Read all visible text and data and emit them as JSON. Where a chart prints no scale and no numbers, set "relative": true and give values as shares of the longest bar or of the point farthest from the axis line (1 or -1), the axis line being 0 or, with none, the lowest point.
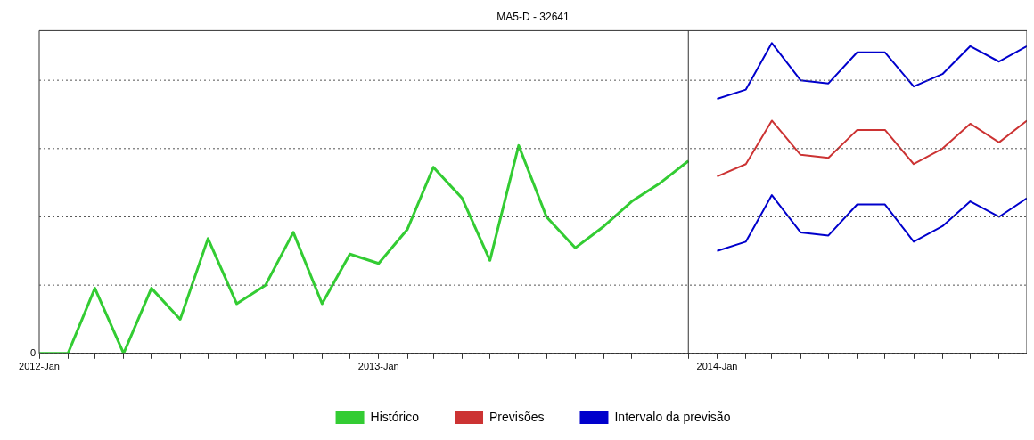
{
  "chart_data": {
    "type": "line",
    "title": "MA5-D - 32641",
    "relative": true,
    "legend": "bottom",
    "marker": "none",
    "line_style": "solid",
    "xlim": [
      "2012-01",
      "2014-12"
    ],
    "xticks": [
      {
        "value": "2012-01",
        "label": "2012-Jan"
      },
      {
        "value": "2012-02",
        "label": null
      },
      {
        "value": "2012-03",
        "label": null
      },
      {
        "value": "2012-04",
        "label": null
      },
      {
        "value": "2012-05",
        "label": null
      },
      {
        "value": "2012-06",
        "label": null
      },
      {
        "value": "2012-07",
        "label": null
      },
      {
        "value": "2012-08",
        "label": null
      },
      {
        "value": "2012-09",
        "label": null
      },
      {
        "value": "2012-10",
        "label": null
      },
      {
        "value": "2012-11",
        "label": null
      },
      {
        "value": "2012-12",
        "label": null
      },
      {
        "value": "2013-01",
        "label": "2013-Jan"
      },
      {
        "value": "2013-02",
        "label": null
      },
      {
        "value": "2013-03",
        "label": null
      },
      {
        "value": "2013-04",
        "label": null
      },
      {
        "value": "2013-05",
        "label": null
      },
      {
        "value": "2013-06",
        "label": null
      },
      {
        "value": "2013-07",
        "label": null
      },
      {
        "value": "2013-08",
        "label": null
      },
      {
        "value": "2013-09",
        "label": null
      },
      {
        "value": "2013-10",
        "label": null
      },
      {
        "value": "2013-11",
        "label": null
      },
      {
        "value": "2013-12",
        "label": null
      },
      {
        "value": "2014-01",
        "label": "2014-Jan"
      },
      {
        "value": "2014-02",
        "label": null
      },
      {
        "value": "2014-03",
        "label": null
      },
      {
        "value": "2014-04",
        "label": null
      },
      {
        "value": "2014-05",
        "label": null
      },
      {
        "value": "2014-06",
        "label": null
      },
      {
        "value": "2014-07",
        "label": null
      },
      {
        "value": "2014-08",
        "label": null
      },
      {
        "value": "2014-09",
        "label": null
      },
      {
        "value": "2014-10",
        "label": null
      },
      {
        "value": "2014-11",
        "label": null
      }
    ],
    "annotations": [
      "0"
    ],
    "ref_lines": [
      {
        "axis": "x",
        "value": "2013-12",
        "color": "#333333"
      },
      {
        "axis": "y",
        "value": 0,
        "color": "#555555",
        "line_style": "dotted"
      },
      {
        "axis": "y",
        "value": 0.22,
        "color": "#555555",
        "line_style": "dotted"
      },
      {
        "axis": "y",
        "value": 0.44,
        "color": "#555555",
        "line_style": "dotted"
      },
      {
        "axis": "y",
        "value": 0.66,
        "color": "#555555",
        "line_style": "dotted"
      },
      {
        "axis": "y",
        "value": 0.88,
        "color": "#555555",
        "line_style": "dotted"
      }
    ],
    "series": [
      {
        "name": "Histórico",
        "color": "#33cc33",
        "x": [
          "2012-01",
          "2012-02",
          "2012-03",
          "2012-04",
          "2012-05",
          "2012-06",
          "2012-07",
          "2012-08",
          "2012-09",
          "2012-10",
          "2012-11",
          "2012-12",
          "2013-01",
          "2013-02",
          "2013-03",
          "2013-04",
          "2013-05",
          "2013-06",
          "2013-07",
          "2013-08",
          "2013-09",
          "2013-10",
          "2013-11",
          "2013-12"
        ],
        "values": [
          0,
          0,
          0.21,
          0,
          0.21,
          0.11,
          0.37,
          0.16,
          0.22,
          0.39,
          0.16,
          0.32,
          0.29,
          0.4,
          0.6,
          0.5,
          0.3,
          0.67,
          0.44,
          0.34,
          0.41,
          0.49,
          0.55,
          0.62
        ]
      },
      {
        "name": "Previsões",
        "color": "#cc3333",
        "x": [
          "2014-01",
          "2014-02",
          "2014-03",
          "2014-04",
          "2014-05",
          "2014-06",
          "2014-07",
          "2014-08",
          "2014-09",
          "2014-10",
          "2014-11",
          "2014-12"
        ],
        "values": [
          0.57,
          0.61,
          0.75,
          0.64,
          0.63,
          0.72,
          0.72,
          0.61,
          0.66,
          0.74,
          0.68,
          0.75
        ]
      },
      {
        "name": "Intervalo da previsão",
        "color": "#0000cc",
        "x": [
          "2014-01",
          "2014-02",
          "2014-03",
          "2014-04",
          "2014-05",
          "2014-06",
          "2014-07",
          "2014-08",
          "2014-09",
          "2014-10",
          "2014-11",
          "2014-12"
        ],
        "values": [
          0.82,
          0.85,
          1,
          0.88,
          0.87,
          0.97,
          0.97,
          0.86,
          0.9,
          0.99,
          0.94,
          0.99
        ]
      },
      {
        "color": "#0000cc",
        "x": [
          "2014-01",
          "2014-02",
          "2014-03",
          "2014-04",
          "2014-05",
          "2014-06",
          "2014-07",
          "2014-08",
          "2014-09",
          "2014-10",
          "2014-11",
          "2014-12"
        ],
        "values": [
          0.33,
          0.36,
          0.51,
          0.39,
          0.38,
          0.48,
          0.48,
          0.36,
          0.41,
          0.49,
          0.44,
          0.5
        ]
      }
    ]
  }
}
